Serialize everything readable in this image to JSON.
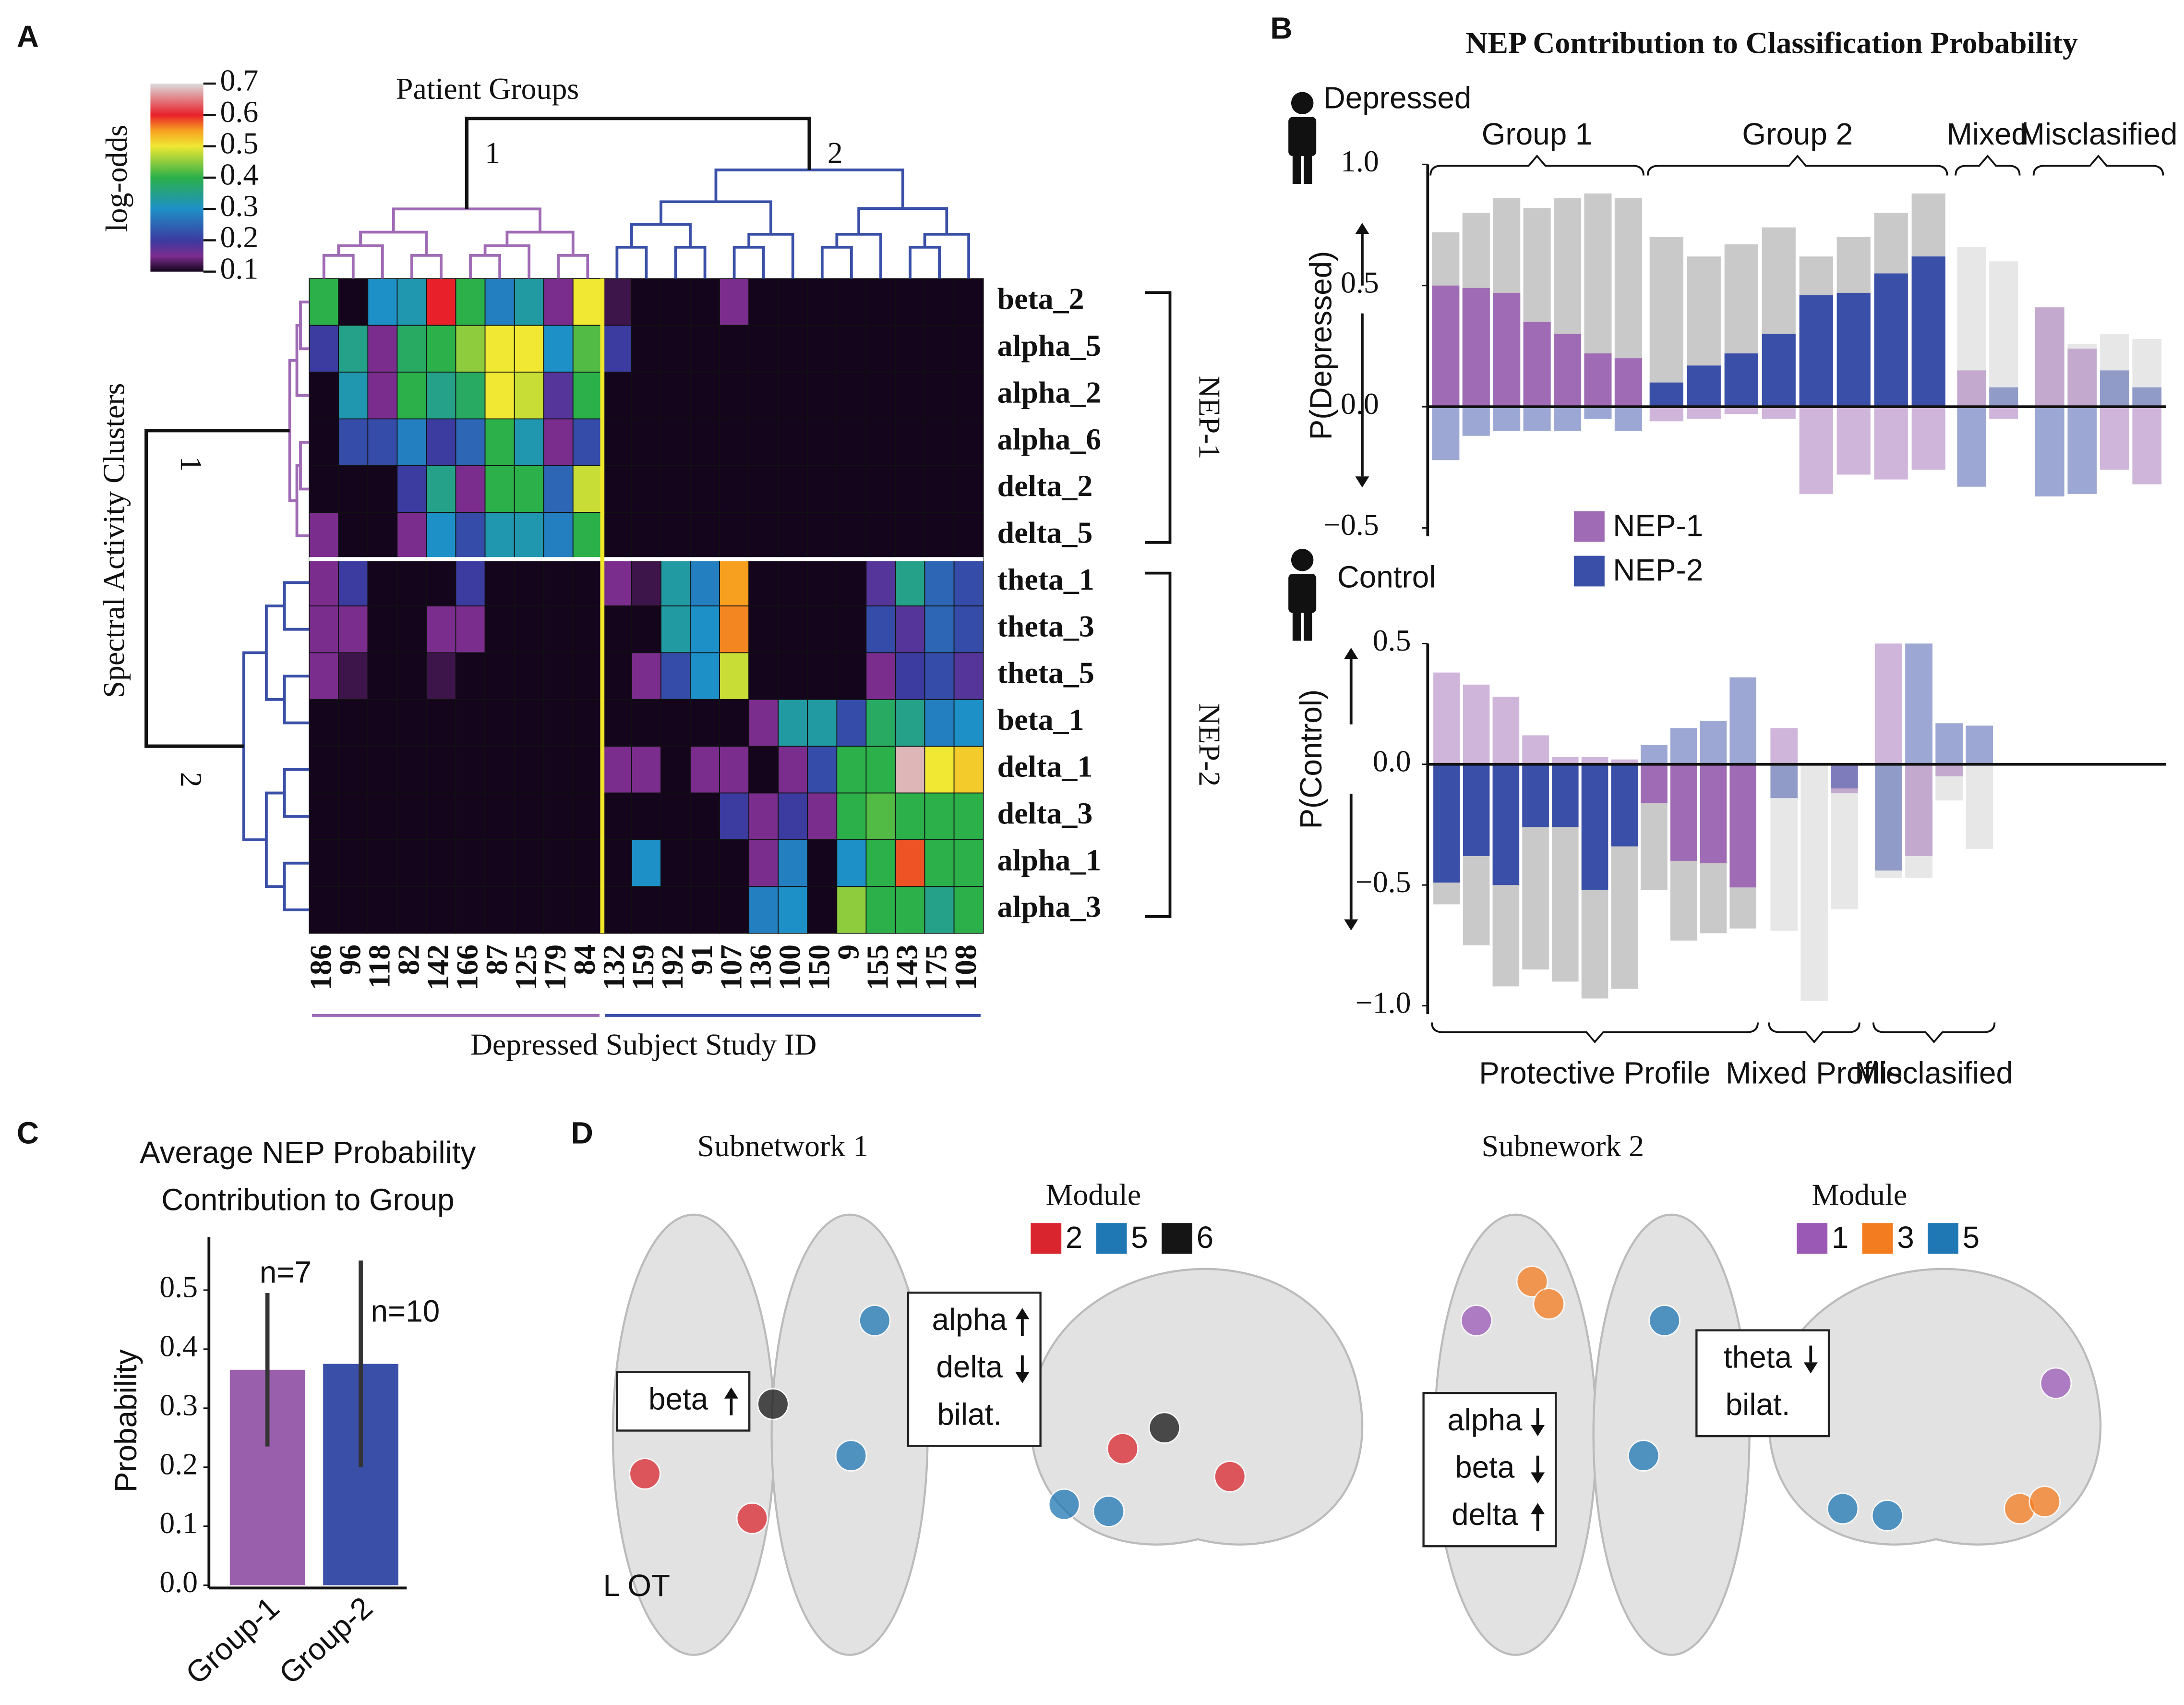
{
  "panels": [
    "A",
    "B",
    "C",
    "D"
  ],
  "chart_data": [
    {
      "type": "heatmap",
      "col_title": "Patient Groups",
      "xlabel": "Depressed Subject Study ID",
      "ylabel": "Spectral Activity Clusters",
      "colorbar_label": "log-odds",
      "clim": [
        0.1,
        0.7
      ],
      "cticks": [
        0.1,
        0.2,
        0.3,
        0.4,
        0.5,
        0.6,
        0.7
      ],
      "colorscale": [
        [
          0.1,
          "#14051c"
        ],
        [
          0.15,
          "#7b2d8e"
        ],
        [
          0.2,
          "#3b3ba0"
        ],
        [
          0.3,
          "#1e90c8"
        ],
        [
          0.4,
          "#2bb04a"
        ],
        [
          0.5,
          "#f0e832"
        ],
        [
          0.55,
          "#f7a020"
        ],
        [
          0.6,
          "#e8202a"
        ],
        [
          0.7,
          "#dcdcdc"
        ]
      ],
      "col_groups": [
        {
          "label": "1",
          "color": "#a06bb5",
          "ids": [
            "186",
            "96",
            "118",
            "82",
            "142",
            "166",
            "87",
            "125",
            "179",
            "84"
          ]
        },
        {
          "label": "2",
          "color": "#3a4fa8",
          "ids": [
            "132",
            "159",
            "192",
            "91",
            "107",
            "136",
            "100",
            "150",
            "9",
            "155",
            "143",
            "175",
            "108"
          ]
        }
      ],
      "row_groups": [
        {
          "label": "NEP-1",
          "cluster": "1",
          "color": "#a06bb5",
          "rows": [
            "beta_2",
            "alpha_5",
            "alpha_2",
            "alpha_6",
            "delta_2",
            "delta_5"
          ]
        },
        {
          "label": "NEP-2",
          "cluster": "2",
          "color": "#3a4fa8",
          "rows": [
            "theta_1",
            "theta_3",
            "theta_5",
            "beta_1",
            "delta_1",
            "delta_3",
            "alpha_1",
            "alpha_3"
          ]
        }
      ],
      "values": [
        [
          0.4,
          0,
          0.3,
          0.32,
          0.6,
          0.4,
          0.28,
          0.33,
          0.15,
          0.5,
          0.12,
          0.05,
          0.05,
          0,
          0.15,
          0,
          0,
          0,
          0,
          0,
          0,
          0,
          0
        ],
        [
          0.2,
          0.35,
          0.15,
          0.38,
          0.4,
          0.45,
          0.5,
          0.5,
          0.3,
          0.42,
          0.2,
          0,
          0,
          0,
          0,
          0,
          0,
          0,
          0,
          0,
          0,
          0,
          0
        ],
        [
          0,
          0.32,
          0.15,
          0.4,
          0.35,
          0.38,
          0.5,
          0.48,
          0.18,
          0.4,
          0,
          0,
          0,
          0,
          0,
          0,
          0,
          0,
          0,
          0,
          0,
          0,
          0
        ],
        [
          0,
          0.22,
          0.22,
          0.28,
          0.2,
          0.25,
          0.4,
          0.32,
          0.15,
          0.22,
          0,
          0,
          0,
          0,
          0,
          0,
          0,
          0,
          0,
          0,
          0,
          0,
          0
        ],
        [
          0,
          0,
          0.05,
          0.2,
          0.35,
          0.15,
          0.4,
          0.4,
          0.25,
          0.48,
          0,
          0,
          0,
          0,
          0,
          0,
          0,
          0,
          0,
          0,
          0,
          0,
          0
        ],
        [
          0.15,
          0,
          0.05,
          0.15,
          0.3,
          0.22,
          0.32,
          0.32,
          0.28,
          0.4,
          0.05,
          0,
          0,
          0,
          0,
          0,
          0,
          0,
          0,
          0,
          0,
          0,
          0
        ],
        [
          0.15,
          0.2,
          0,
          0,
          0,
          0.2,
          0,
          0,
          0,
          0,
          0.15,
          0.12,
          0.33,
          0.28,
          0.55,
          0,
          0,
          0,
          0.08,
          0.18,
          0.35,
          0.25,
          0.22
        ],
        [
          0.15,
          0.15,
          0,
          0,
          0.15,
          0.15,
          0,
          0,
          0,
          0,
          0,
          0.05,
          0.33,
          0.3,
          0.56,
          0,
          0,
          0,
          0,
          0.22,
          0.18,
          0.25,
          0.22
        ],
        [
          0.15,
          0.12,
          0.05,
          0,
          0.12,
          0,
          0,
          0,
          0,
          0,
          0,
          0.15,
          0.22,
          0.3,
          0.48,
          0,
          0,
          0,
          0.08,
          0.15,
          0.2,
          0.22,
          0.18
        ],
        [
          0,
          0,
          0,
          0,
          0,
          0,
          0,
          0,
          0,
          0,
          0,
          0,
          0,
          0,
          0,
          0.15,
          0.33,
          0.33,
          0.22,
          0.38,
          0.35,
          0.28,
          0.3
        ],
        [
          0,
          0,
          0,
          0,
          0,
          0,
          0,
          0,
          0,
          0,
          0.15,
          0.15,
          0,
          0.15,
          0.15,
          0,
          0.15,
          0.22,
          0.4,
          0.4,
          0.68,
          0.5,
          0.52
        ],
        [
          0,
          0,
          0,
          0,
          0,
          0,
          0,
          0,
          0,
          0,
          0,
          0,
          0.05,
          0,
          0.2,
          0.15,
          0.2,
          0.15,
          0.4,
          0.42,
          0.4,
          0.4,
          0.4
        ],
        [
          0,
          0,
          0,
          0,
          0,
          0,
          0,
          0,
          0,
          0,
          0,
          0.3,
          0,
          0,
          0,
          0.15,
          0.28,
          0,
          0.3,
          0.4,
          0.58,
          0.4,
          0.4
        ],
        [
          0,
          0,
          0,
          0,
          0,
          0,
          0,
          0,
          0,
          0,
          0,
          0,
          0.05,
          0,
          0,
          0.28,
          0.3,
          0,
          0.45,
          0.4,
          0.4,
          0.35,
          0.4
        ]
      ]
    },
    {
      "type": "diverging_bar",
      "suptitle": "NEP Contribution to Classification Probability",
      "title": "Depressed",
      "ylabel": "P(Depressed)",
      "ylim": [
        -0.5,
        1
      ],
      "yticks": [
        {
          "value": 1,
          "label": "1.0"
        },
        0.5,
        {
          "value": 0,
          "label": "0.0"
        },
        {
          "value": -0.5,
          "label": "−0.5"
        }
      ],
      "emphasis": "positive",
      "faded": [
        false,
        false,
        true,
        true
      ],
      "total_color": "#c9c9c9",
      "group_labels": [
        "Group 1",
        "Group 2",
        "Mixed",
        "Misclasified"
      ],
      "total": [
        [
          0.72,
          0.8,
          0.86,
          0.82,
          0.86,
          0.88,
          0.86
        ],
        [
          0.7,
          0.62,
          0.67,
          0.74,
          0.62,
          0.7,
          0.8,
          0.88
        ],
        [
          0.66,
          0.6
        ],
        [
          0.41,
          0.26,
          0.3,
          0.28
        ]
      ],
      "series": [
        {
          "name": "NEP-1",
          "color": "#a06bb5",
          "values": [
            [
              0.5,
              0.49,
              0.47,
              0.35,
              0.3,
              0.22,
              0.2
            ],
            [
              -0.06,
              -0.05,
              -0.03,
              -0.05,
              -0.36,
              -0.28,
              -0.3,
              -0.26
            ],
            [
              0.15,
              -0.05
            ],
            [
              0.41,
              0.24,
              -0.26,
              -0.32
            ]
          ]
        },
        {
          "name": "NEP-2",
          "color": "#3a4fa8",
          "values": [
            [
              -0.22,
              -0.12,
              -0.1,
              -0.1,
              -0.1,
              -0.05,
              -0.1
            ],
            [
              0.1,
              0.17,
              0.22,
              0.3,
              0.46,
              0.47,
              0.55,
              0.62
            ],
            [
              -0.33,
              0.08
            ],
            [
              -0.37,
              -0.36,
              0.15,
              0.08
            ]
          ]
        }
      ]
    },
    {
      "type": "diverging_bar",
      "title": "Control",
      "ylabel": "P(Control)",
      "ylim": [
        -1,
        0.5
      ],
      "yticks": [
        0.5,
        {
          "value": 0,
          "label": "0.0"
        },
        {
          "value": -0.5,
          "label": "−0.5"
        },
        {
          "value": -1,
          "label": "−1.0"
        }
      ],
      "emphasis": "negative",
      "faded": [
        false,
        true,
        true
      ],
      "total_color": "#c9c9c9",
      "group_labels": [
        "Protective Profile",
        "Mixed Profile",
        "Misclasified"
      ],
      "total": [
        [
          -0.58,
          -0.75,
          -0.92,
          -0.85,
          -0.9,
          -0.97,
          -0.93,
          -0.52,
          -0.73,
          -0.7,
          -0.68
        ],
        [
          -0.69,
          -0.98,
          -0.6
        ],
        [
          -0.47,
          -0.47,
          -0.15,
          -0.35
        ]
      ],
      "series": [
        {
          "color": "#a06bb5",
          "values": [
            [
              0.38,
              0.33,
              0.28,
              0.12,
              0.03,
              0.03,
              0.02,
              -0.16,
              -0.4,
              -0.41,
              -0.51
            ],
            [
              0.15,
              0,
              -0.12
            ],
            [
              0.5,
              -0.38,
              -0.05,
              0
            ]
          ]
        },
        {
          "color": "#3a4fa8",
          "values": [
            [
              -0.49,
              -0.38,
              -0.5,
              -0.26,
              -0.26,
              -0.52,
              -0.34,
              0.08,
              0.15,
              0.18,
              0.36
            ],
            [
              -0.14,
              0,
              -0.1
            ],
            [
              -0.44,
              0.5,
              0.17,
              0.16
            ]
          ]
        }
      ]
    },
    {
      "type": "bar",
      "title": [
        "Average NEP Probability",
        "Contribution to Group"
      ],
      "ylabel": "Probability",
      "categories": [
        "Group-1",
        "Group-2"
      ],
      "values": [
        0.365,
        0.375
      ],
      "errors": [
        0.13,
        0.175
      ],
      "annotations": [
        "n=7",
        "n=10"
      ],
      "colors": [
        "#9a5fac",
        "#3a4fa8"
      ],
      "ylim": [
        0,
        0.59
      ],
      "yticks": [
        {
          "value": 0,
          "label": "0.0"
        },
        0.1,
        0.2,
        0.3,
        0.4,
        0.5
      ]
    }
  ],
  "brain_panel": {
    "subnetworks": [
      {
        "title": "Subnetwork 1",
        "module_title": "Module",
        "modules": [
          {
            "label": "2",
            "color": "#d9262e"
          },
          {
            "label": "5",
            "color": "#1f77b4"
          },
          {
            "label": "6",
            "color": "#151515"
          }
        ],
        "notes": [
          {
            "lines": [
              "beta"
            ],
            "arrows": [
              "up"
            ]
          },
          {
            "lines": [
              "alpha",
              "delta",
              "bilat."
            ],
            "arrows": [
              "up",
              "down",
              null
            ]
          }
        ],
        "side_label": "L OT"
      },
      {
        "title": "Subnework 2",
        "module_title": "Module",
        "modules": [
          {
            "label": "1",
            "color": "#9b59b6"
          },
          {
            "label": "3",
            "color": "#f47c20"
          },
          {
            "label": "5",
            "color": "#1f77b4"
          }
        ],
        "notes": [
          {
            "lines": [
              "alpha",
              "beta",
              "delta"
            ],
            "arrows": [
              "down",
              "down",
              "up"
            ]
          },
          {
            "lines": [
              "theta",
              "bilat."
            ],
            "arrows": [
              "down",
              null
            ]
          }
        ]
      }
    ]
  }
}
